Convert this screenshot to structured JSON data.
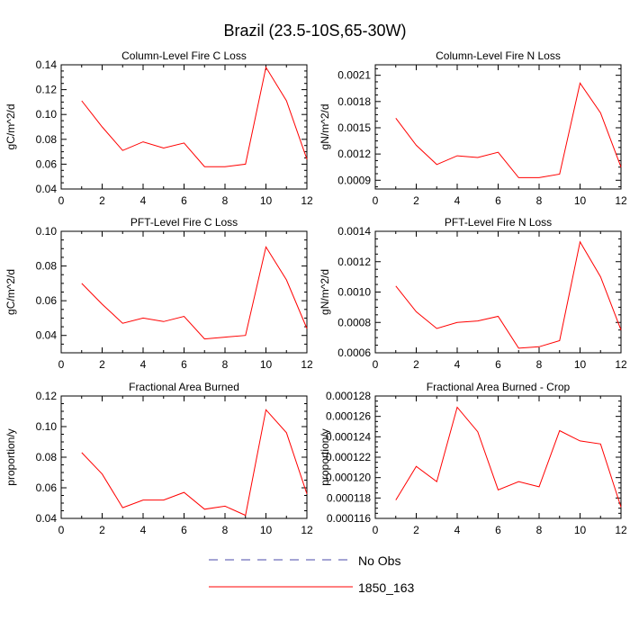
{
  "figure_title": "Brazil (23.5-10S,65-30W)",
  "legend": {
    "entries": [
      {
        "label": "No Obs",
        "color": "#4a4aa8",
        "dashed": true
      },
      {
        "label": "1850_163",
        "color": "#ff0000",
        "dashed": false
      }
    ]
  },
  "chart_data": [
    {
      "type": "line",
      "title": "Column-Level Fire C Loss",
      "xlabel": "",
      "ylabel": "gC/m^2/d",
      "xlim": [
        0,
        12
      ],
      "ylim": [
        0.04,
        0.14
      ],
      "xticks": [
        "0",
        "2",
        "4",
        "6",
        "8",
        "10",
        "12"
      ],
      "yticks": [
        "0.04",
        "0.06",
        "0.08",
        "0.10",
        "0.12",
        "0.14"
      ],
      "ytick_values": [
        0.04,
        0.06,
        0.08,
        0.1,
        0.12,
        0.14
      ],
      "x": [
        1,
        2,
        3,
        4,
        5,
        6,
        7,
        8,
        9,
        10,
        11,
        12
      ],
      "series": [
        {
          "name": "1850_163",
          "color": "#ff0000",
          "values": [
            0.111,
            0.09,
            0.071,
            0.078,
            0.073,
            0.077,
            0.058,
            0.058,
            0.06,
            0.138,
            0.111,
            0.064
          ]
        }
      ]
    },
    {
      "type": "line",
      "title": "Column-Level Fire N Loss",
      "xlabel": "",
      "ylabel": "gN/m^2/d",
      "xlim": [
        0,
        12
      ],
      "ylim": [
        0.0008,
        0.00222
      ],
      "xticks": [
        "0",
        "2",
        "4",
        "6",
        "8",
        "10",
        "12"
      ],
      "yticks": [
        "0.0009",
        "0.0012",
        "0.0015",
        "0.0018",
        "0.0021"
      ],
      "ytick_values": [
        0.0009,
        0.0012,
        0.0015,
        0.0018,
        0.0021
      ],
      "x": [
        1,
        2,
        3,
        4,
        5,
        6,
        7,
        8,
        9,
        10,
        11,
        12
      ],
      "series": [
        {
          "name": "1850_163",
          "color": "#ff0000",
          "values": [
            0.00161,
            0.0013,
            0.00108,
            0.00118,
            0.00116,
            0.00122,
            0.00093,
            0.00093,
            0.00097,
            0.00201,
            0.00167,
            0.00105
          ]
        }
      ]
    },
    {
      "type": "line",
      "title": "PFT-Level Fire C Loss",
      "xlabel": "",
      "ylabel": "gC/m^2/d",
      "xlim": [
        0,
        12
      ],
      "ylim": [
        0.03,
        0.1
      ],
      "xticks": [
        "0",
        "2",
        "4",
        "6",
        "8",
        "10",
        "12"
      ],
      "yticks": [
        "0.04",
        "0.06",
        "0.08",
        "0.10"
      ],
      "ytick_values": [
        0.04,
        0.06,
        0.08,
        0.1
      ],
      "x": [
        1,
        2,
        3,
        4,
        5,
        6,
        7,
        8,
        9,
        10,
        11,
        12
      ],
      "series": [
        {
          "name": "1850_163",
          "color": "#ff0000",
          "values": [
            0.07,
            0.058,
            0.047,
            0.05,
            0.048,
            0.051,
            0.038,
            0.039,
            0.04,
            0.091,
            0.072,
            0.044
          ]
        }
      ]
    },
    {
      "type": "line",
      "title": "PFT-Level Fire N Loss",
      "xlabel": "",
      "ylabel": "gN/m^2/d",
      "xlim": [
        0,
        12
      ],
      "ylim": [
        0.0006,
        0.0014
      ],
      "xticks": [
        "0",
        "2",
        "4",
        "6",
        "8",
        "10",
        "12"
      ],
      "yticks": [
        "0.0006",
        "0.0008",
        "0.0010",
        "0.0012",
        "0.0014"
      ],
      "ytick_values": [
        0.0006,
        0.0008,
        0.001,
        0.0012,
        0.0014
      ],
      "x": [
        1,
        2,
        3,
        4,
        5,
        6,
        7,
        8,
        9,
        10,
        11,
        12
      ],
      "series": [
        {
          "name": "1850_163",
          "color": "#ff0000",
          "values": [
            0.00104,
            0.00087,
            0.00076,
            0.0008,
            0.00081,
            0.00084,
            0.00063,
            0.00064,
            0.00068,
            0.00133,
            0.0011,
            0.00075
          ]
        }
      ]
    },
    {
      "type": "line",
      "title": "Fractional Area Burned",
      "xlabel": "",
      "ylabel": "proportion/y",
      "xlim": [
        0,
        12
      ],
      "ylim": [
        0.04,
        0.12
      ],
      "xticks": [
        "0",
        "2",
        "4",
        "6",
        "8",
        "10",
        "12"
      ],
      "yticks": [
        "0.04",
        "0.06",
        "0.08",
        "0.10",
        "0.12"
      ],
      "ytick_values": [
        0.04,
        0.06,
        0.08,
        0.1,
        0.12
      ],
      "x": [
        1,
        2,
        3,
        4,
        5,
        6,
        7,
        8,
        9,
        10,
        11,
        12
      ],
      "series": [
        {
          "name": "1850_163",
          "color": "#ff0000",
          "values": [
            0.083,
            0.069,
            0.047,
            0.052,
            0.052,
            0.057,
            0.046,
            0.048,
            0.042,
            0.111,
            0.096,
            0.056
          ]
        }
      ]
    },
    {
      "type": "line",
      "title": "Fractional Area Burned - Crop",
      "xlabel": "",
      "ylabel": "proportion/y",
      "xlim": [
        0,
        12
      ],
      "ylim": [
        0.000116,
        0.000128
      ],
      "xticks": [
        "0",
        "2",
        "4",
        "6",
        "8",
        "10",
        "12"
      ],
      "yticks": [
        "0.000116",
        "0.000118",
        "0.000120",
        "0.000122",
        "0.000124",
        "0.000126",
        "0.000128"
      ],
      "ytick_values": [
        0.000116,
        0.000118,
        0.00012,
        0.000122,
        0.000124,
        0.000126,
        0.000128
      ],
      "x": [
        1,
        2,
        3,
        4,
        5,
        6,
        7,
        8,
        9,
        10,
        11,
        12
      ],
      "series": [
        {
          "name": "1850_163",
          "color": "#ff0000",
          "values": [
            0.0001178,
            0.0001211,
            0.0001196,
            0.0001269,
            0.0001245,
            0.0001188,
            0.0001196,
            0.0001191,
            0.0001246,
            0.0001236,
            0.0001233,
            0.0001171
          ]
        }
      ]
    }
  ]
}
